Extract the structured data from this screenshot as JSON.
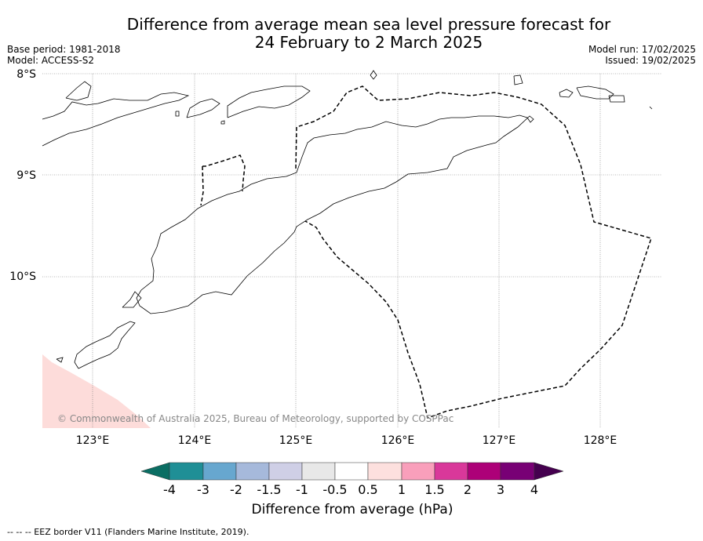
{
  "title": {
    "line1": "Difference from average mean sea level pressure forecast for",
    "line2": "24 February to 2 March 2025"
  },
  "meta_left": {
    "base_period": "Base period: 1981-2018",
    "model": "Model: ACCESS-S2"
  },
  "meta_right": {
    "model_run": "Model run: 17/02/2025",
    "issued": "Issued: 19/02/2025"
  },
  "map": {
    "lat_labels": [
      "8°S",
      "9°S",
      "10°S"
    ],
    "lon_labels": [
      "123°E",
      "124°E",
      "125°E",
      "126°E",
      "127°E",
      "128°E"
    ],
    "copyright": "© Commonwealth of Australia 2025, Bureau of Meteorology, supported by COSPPac",
    "anomaly_fill_color": "#fddcda"
  },
  "colorbar": {
    "ticks": [
      "-4",
      "-3",
      "-2",
      "-1.5",
      "-1",
      "-0.5",
      "0.5",
      "1",
      "1.5",
      "2",
      "3",
      "4"
    ],
    "colors": [
      "#0b6e63",
      "#1f8f96",
      "#67a7cf",
      "#a6b9db",
      "#cfcfe6",
      "#e8e8e8",
      "#ffffff",
      "#fde0de",
      "#f99fbb",
      "#d9389a",
      "#ad0078",
      "#780075",
      "#45004f"
    ],
    "label": "Difference from average (hPa)"
  },
  "footer": "-- -- -- EEZ border V11 (Flanders Marine Institute, 2019)."
}
